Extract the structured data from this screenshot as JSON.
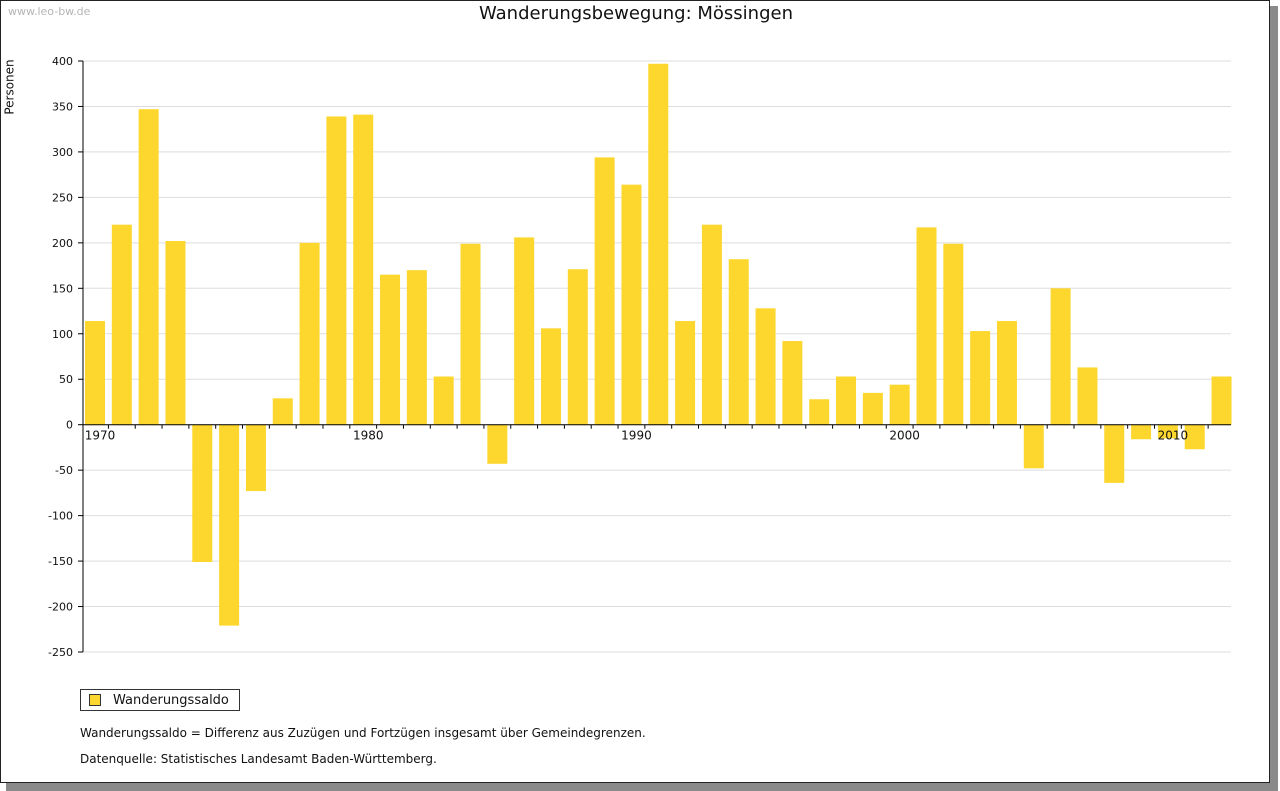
{
  "watermark": "www.leo-bw.de",
  "chart_data": {
    "type": "bar",
    "title": "Wanderungsbewegung: Mössingen",
    "ylabel": "Personen",
    "xlabel": "",
    "ylim": [
      -250,
      400
    ],
    "yticks": [
      400,
      350,
      300,
      250,
      200,
      150,
      100,
      50,
      0,
      -50,
      -100,
      -150,
      -200,
      -250
    ],
    "xtick_labels": [
      "1970",
      "1980",
      "1990",
      "2000",
      "2010"
    ],
    "grid": true,
    "bar_color": "#FDD72E",
    "categories": [
      1970,
      1971,
      1972,
      1973,
      1974,
      1975,
      1976,
      1977,
      1978,
      1979,
      1980,
      1981,
      1982,
      1983,
      1984,
      1985,
      1986,
      1987,
      1988,
      1989,
      1990,
      1991,
      1992,
      1993,
      1994,
      1995,
      1996,
      1997,
      1998,
      1999,
      2000,
      2001,
      2002,
      2003,
      2004,
      2005,
      2006,
      2007,
      2008,
      2009,
      2010,
      2011,
      2012
    ],
    "series": [
      {
        "name": "Wanderungssaldo",
        "values": [
          114,
          220,
          347,
          202,
          -151,
          -221,
          -73,
          29,
          200,
          339,
          341,
          165,
          170,
          53,
          199,
          -43,
          206,
          106,
          171,
          294,
          264,
          397,
          114,
          220,
          182,
          128,
          92,
          28,
          53,
          35,
          44,
          217,
          199,
          103,
          114,
          -48,
          150,
          63,
          -64,
          -16,
          -15,
          -27,
          53
        ]
      }
    ],
    "legend_position": "bottom-left"
  },
  "notes": {
    "definition": "Wanderungssaldo = Differenz aus Zuzügen und Fortzügen insgesamt über Gemeindegrenzen.",
    "source": "Datenquelle: Statistisches Landesamt Baden-Württemberg."
  }
}
